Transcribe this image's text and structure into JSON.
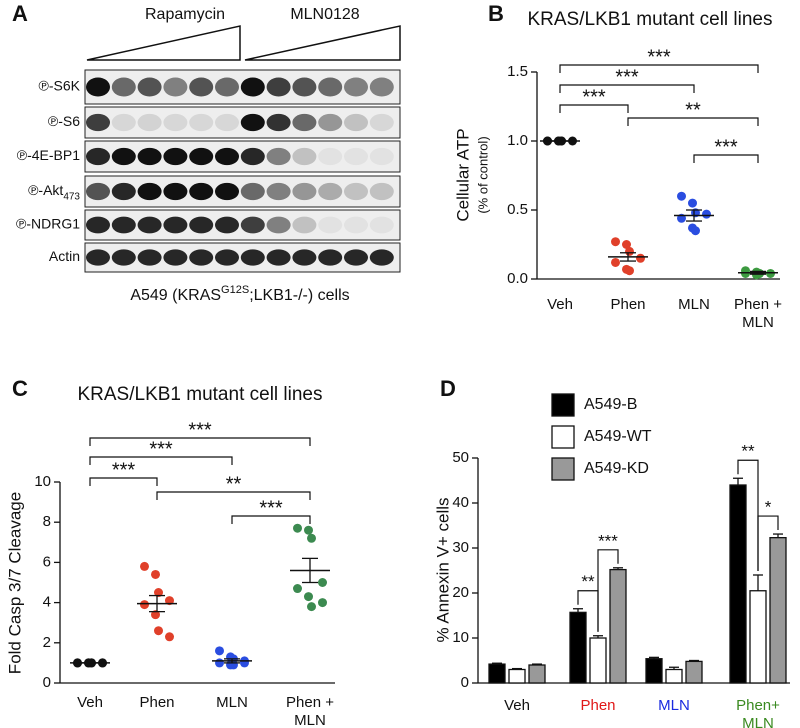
{
  "blot": {
    "letter": "A",
    "treatments": [
      "Rapamycin",
      "MLN0128"
    ],
    "rows": [
      {
        "label": "℗-S6K"
      },
      {
        "label": "℗-S6"
      },
      {
        "label": "℗-4E-BP1"
      },
      {
        "label": "℗-Akt",
        "subscript": "473"
      },
      {
        "label": "℗-NDRG1"
      },
      {
        "label": "Actin"
      }
    ],
    "caption": {
      "prefix": "A549 (KRAS",
      "superscript": "G12S",
      "suffix": ";LKB1-/-) cells"
    }
  },
  "chart_data": [
    {
      "type": "dot",
      "letter": "B",
      "title": "KRAS/LKB1 mutant cell lines",
      "y_label": "Cellular ATP",
      "y_sublabel": "(% of control)",
      "categories": [
        "Veh",
        "Phen",
        "MLN",
        "Phen +\nMLN"
      ],
      "colors": [
        "#111111",
        "#e0402a",
        "#2a4de0",
        "#3c9a40"
      ],
      "points": [
        [
          1,
          1,
          1,
          1,
          1,
          1,
          1
        ],
        [
          0.27,
          0.25,
          0.2,
          0.15,
          0.12,
          0.07,
          0.06
        ],
        [
          0.6,
          0.55,
          0.48,
          0.47,
          0.44,
          0.37,
          0.35
        ],
        [
          0.06,
          0.05,
          0.04,
          0.04,
          0.04,
          0.03,
          0.04
        ]
      ],
      "means": [
        1,
        0.16,
        0.46,
        0.045
      ],
      "errors": [
        0,
        0.03,
        0.04,
        0.01
      ],
      "ylim": [
        0,
        1.5
      ],
      "yticks": [
        {
          "value": 0,
          "label": "0.0"
        },
        0.5,
        {
          "value": 1,
          "label": "1.0"
        },
        1.5
      ],
      "significance": [
        {
          "from": 0,
          "to": 3,
          "label": "***"
        },
        {
          "from": 0,
          "to": 2,
          "label": "***"
        },
        {
          "from": 0,
          "to": 1,
          "label": "***"
        },
        {
          "from": 1,
          "to": 3,
          "label": "**"
        },
        {
          "from": 2,
          "to": 3,
          "label": "***"
        }
      ]
    },
    {
      "type": "dot",
      "letter": "C",
      "title": "KRAS/LKB1 mutant cell lines",
      "y_label": "Fold Casp 3/7 Cleavage",
      "categories": [
        "Veh",
        "Phen",
        "MLN",
        "Phen +\nMLN"
      ],
      "colors": [
        "#111111",
        "#e0402a",
        "#2a4de0",
        "#3c8a50"
      ],
      "points": [
        [
          1,
          1,
          1,
          1,
          1,
          1,
          1,
          1
        ],
        [
          5.8,
          5.4,
          4.5,
          4.1,
          3.9,
          3.4,
          2.6,
          2.3
        ],
        [
          1.6,
          1.3,
          1.2,
          1.1,
          1,
          0.9,
          0.9,
          1
        ],
        [
          7.7,
          7.6,
          7.2,
          5,
          4.7,
          4.3,
          3.8,
          4
        ]
      ],
      "means": [
        1,
        3.95,
        1.1,
        5.6
      ],
      "errors": [
        0,
        0.4,
        0.1,
        0.6
      ],
      "ylim": [
        0,
        10
      ],
      "yticks": [
        0,
        2,
        4,
        6,
        8,
        10
      ],
      "significance": [
        {
          "from": 0,
          "to": 3,
          "label": "***"
        },
        {
          "from": 0,
          "to": 2,
          "label": "***"
        },
        {
          "from": 0,
          "to": 1,
          "label": "***"
        },
        {
          "from": 1,
          "to": 3,
          "label": "**"
        },
        {
          "from": 2,
          "to": 3,
          "label": "***"
        }
      ]
    },
    {
      "type": "bar",
      "letter": "D",
      "y_label": "% Annexin V+ cells",
      "categories": [
        "Veh",
        "Phen",
        "MLN",
        "Phen+\nMLN"
      ],
      "category_colors": [
        "#111111",
        "#e01818",
        "#1a2ae0",
        "#3a8a20"
      ],
      "series": [
        {
          "name": "A549-B",
          "color": "#000000",
          "values": [
            4.2,
            15.7,
            5.4,
            44
          ],
          "errors": [
            0.2,
            0.8,
            0.3,
            1.5
          ]
        },
        {
          "name": "A549-WT",
          "color": "#ffffff",
          "values": [
            3,
            10,
            3,
            20.5
          ],
          "errors": [
            0.2,
            0.5,
            0.5,
            3.5
          ]
        },
        {
          "name": "A549-KD",
          "color": "#999999",
          "values": [
            4,
            25.2,
            4.8,
            32.3
          ],
          "errors": [
            0.2,
            0.4,
            0.2,
            0.8
          ]
        }
      ],
      "ylim": [
        0,
        50
      ],
      "yticks": [
        0,
        10,
        20,
        30,
        40,
        50
      ],
      "significance": [
        {
          "category": 1,
          "from": 0,
          "to": 1,
          "label": "**"
        },
        {
          "category": 1,
          "from": 1,
          "to": 2,
          "label": "***"
        },
        {
          "category": 3,
          "from": 0,
          "to": 1,
          "label": "**"
        },
        {
          "category": 3,
          "from": 1,
          "to": 2,
          "label": "*"
        }
      ]
    }
  ]
}
